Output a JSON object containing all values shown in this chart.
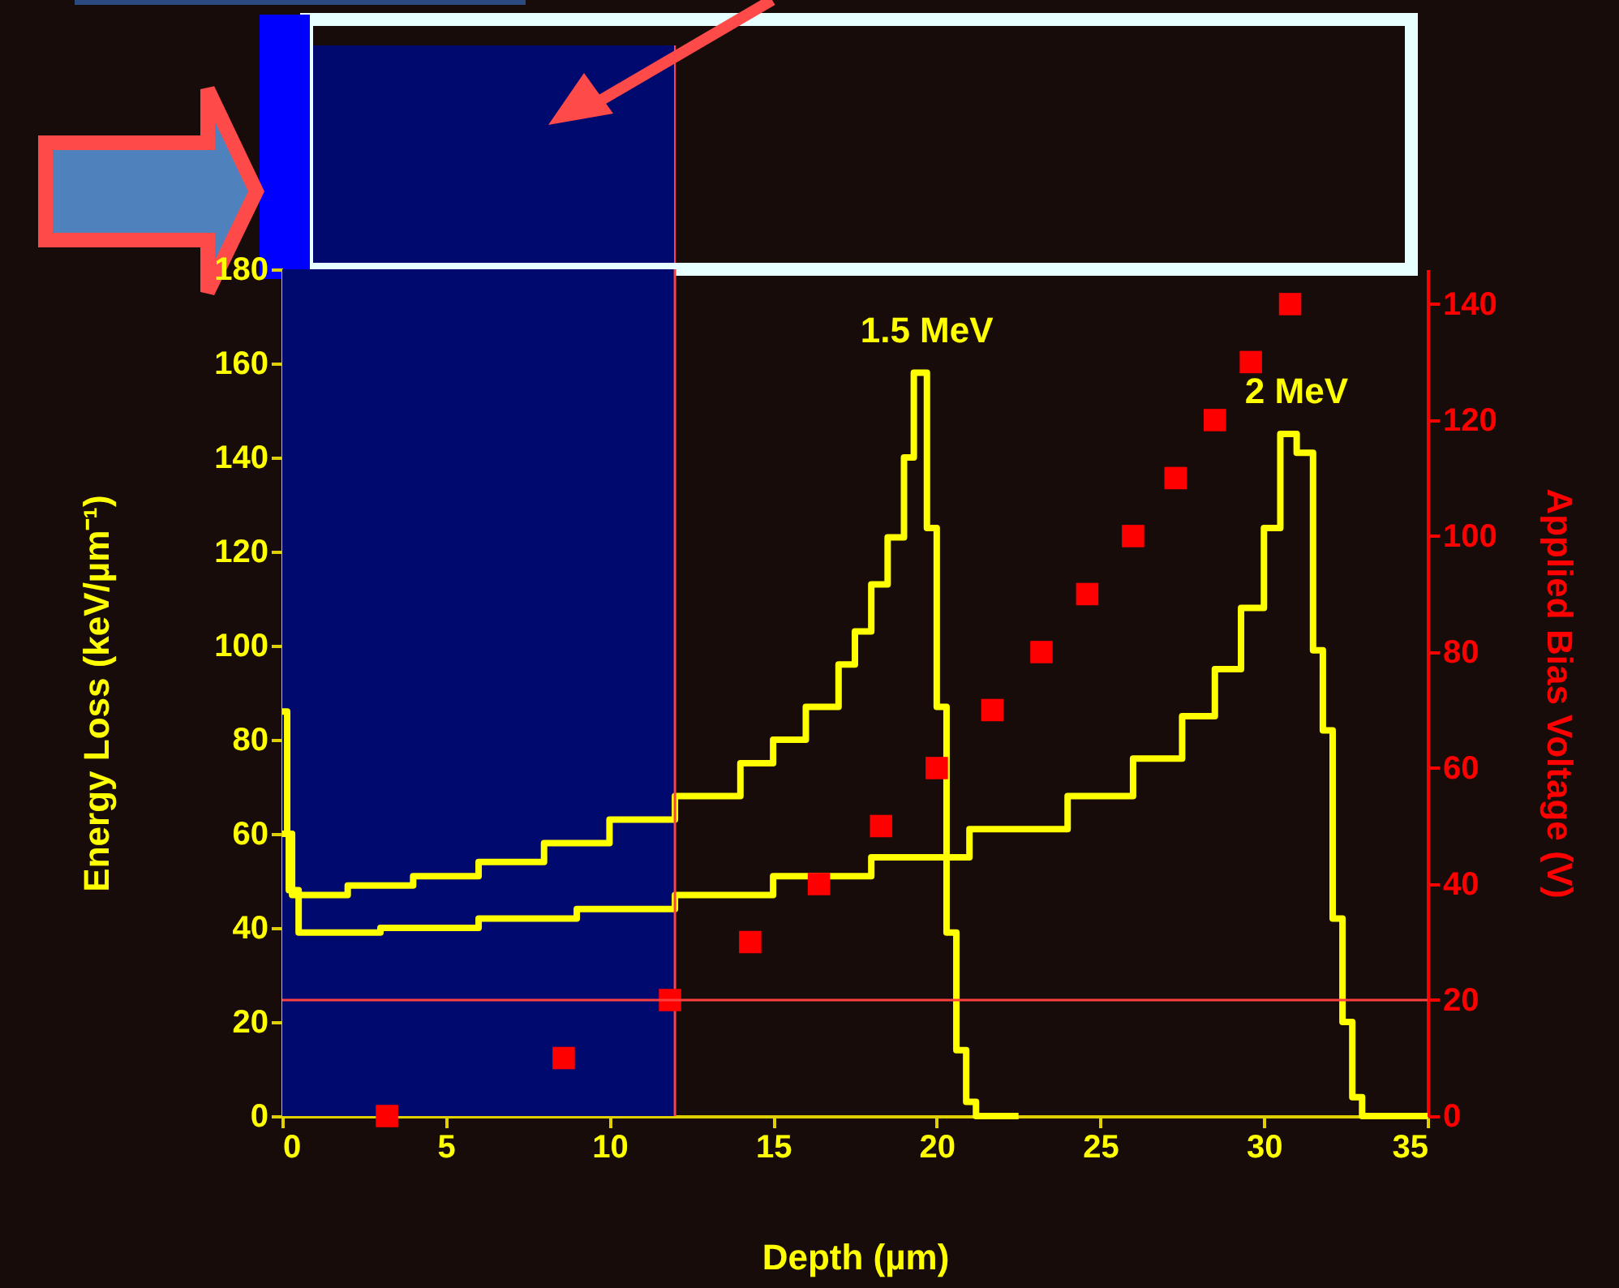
{
  "chart_data": {
    "type": "step",
    "xlabel": "Depth (µm)",
    "ylabel": "Energy Loss (keV/µm⁻¹)",
    "y2label": "Applied Bias Voltage (V)",
    "xlim": [
      0,
      35
    ],
    "xticks": [
      0,
      5,
      10,
      15,
      20,
      25,
      30,
      35
    ],
    "ylim": [
      0,
      180
    ],
    "yticks": [
      0,
      20,
      40,
      60,
      80,
      100,
      120,
      140,
      160,
      180
    ],
    "y2lim": [
      0,
      146
    ],
    "y2ticks": [
      0,
      20,
      40,
      60,
      80,
      100,
      120,
      140
    ],
    "grid": false,
    "series": [
      {
        "name": "1.5 MeV",
        "color": "#ffff00",
        "x": [
          0,
          0.15,
          0.3,
          2,
          4,
          6,
          8,
          10,
          12,
          14,
          15,
          16,
          17,
          17.5,
          18,
          18.5,
          19,
          19.3,
          19.7,
          20.0,
          20.3,
          20.6,
          20.9,
          21.2,
          22.5
        ],
        "values": [
          86,
          60,
          47,
          49,
          51,
          54,
          58,
          63,
          68,
          75,
          80,
          87,
          96,
          103,
          113,
          123,
          140,
          158,
          125,
          87,
          39,
          14,
          3,
          0,
          0
        ]
      },
      {
        "name": "2 MeV",
        "color": "#ffff00",
        "x": [
          0,
          0.2,
          0.5,
          3,
          6,
          9,
          12,
          15,
          18,
          21,
          24,
          26,
          27.5,
          28.5,
          29.3,
          30,
          30.5,
          31.0,
          31.5,
          31.8,
          32.1,
          32.4,
          32.7,
          33,
          35
        ],
        "values": [
          60,
          48,
          39,
          40,
          42,
          44,
          47,
          51,
          55,
          61,
          68,
          76,
          85,
          95,
          108,
          125,
          145,
          141,
          99,
          82,
          42,
          20,
          4,
          0,
          0
        ]
      },
      {
        "type": "scatter",
        "axis": "y2",
        "marker": "square",
        "color": "#ff0000",
        "x": [
          3.2,
          8.6,
          11.85,
          14.3,
          16.4,
          18.3,
          20.0,
          21.7,
          23.2,
          24.6,
          26.0,
          27.3,
          28.5,
          29.6,
          30.8
        ],
        "values": [
          0,
          10,
          20,
          30,
          40,
          50,
          60,
          70,
          80,
          90,
          100,
          110,
          120,
          130,
          140
        ]
      }
    ],
    "bands": [
      {
        "axis": "x",
        "from": 0,
        "to": 12,
        "color": "#000a6e"
      }
    ],
    "ref_lines": [
      {
        "axis": "x",
        "value": 12,
        "color": "#ff4040"
      },
      {
        "axis": "y2",
        "value": 20,
        "color": "#ff4040"
      }
    ]
  }
}
